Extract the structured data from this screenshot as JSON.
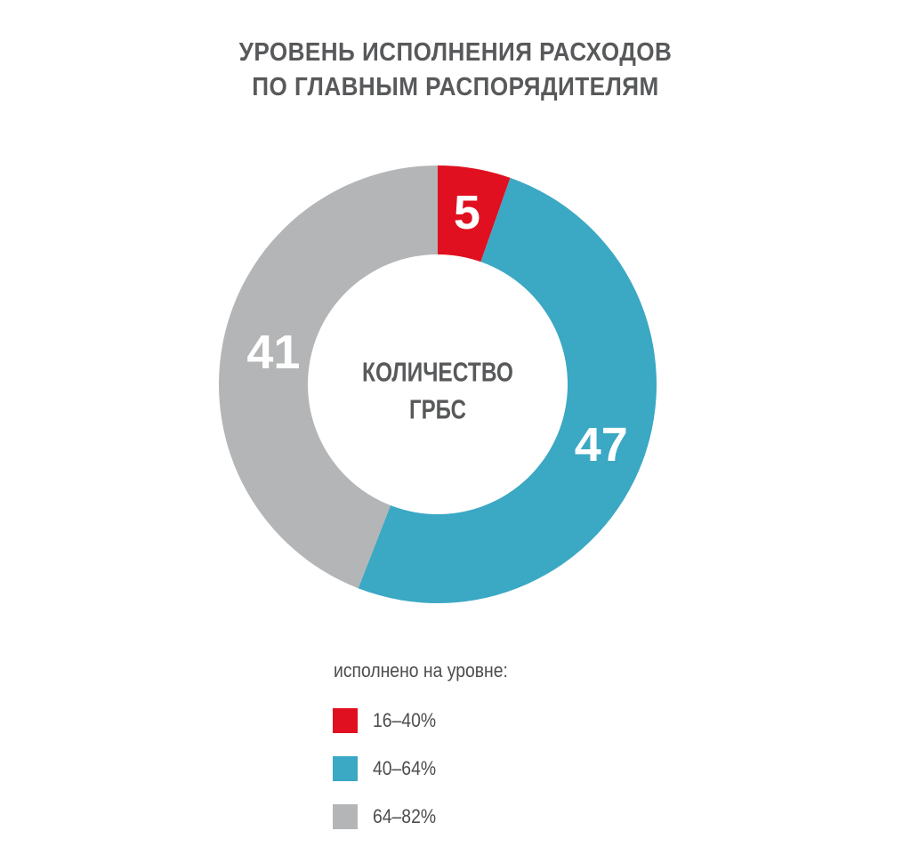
{
  "title_lines": [
    "УРОВЕНЬ ИСПОЛНЕНИЯ РАСХОДОВ",
    "ПО ГЛАВНЫМ РАСПОРЯДИТЕЛЯМ"
  ],
  "chart_data": {
    "type": "pie",
    "donut": true,
    "title": "УРОВЕНЬ ИСПОЛНЕНИЯ РАСХОДОВ ПО ГЛАВНЫМ РАСПОРЯДИТЕЛЯМ",
    "center_label": [
      "КОЛИЧЕСТВО",
      "ГРБС"
    ],
    "legend_title": "исполнено на уровне:",
    "legend_placement": "bottom",
    "slices": [
      {
        "label": "16–40%",
        "value": 5,
        "color": "#e01020"
      },
      {
        "label": "40–64%",
        "value": 47,
        "color": "#3ba8c4"
      },
      {
        "label": "64–82%",
        "value": 41,
        "color": "#b4b5b7"
      }
    ]
  },
  "colors": {
    "title_text": "#58595b",
    "center_text": "#58595b",
    "value_text": "#ffffff",
    "legend_text": "#4d4d4f"
  }
}
